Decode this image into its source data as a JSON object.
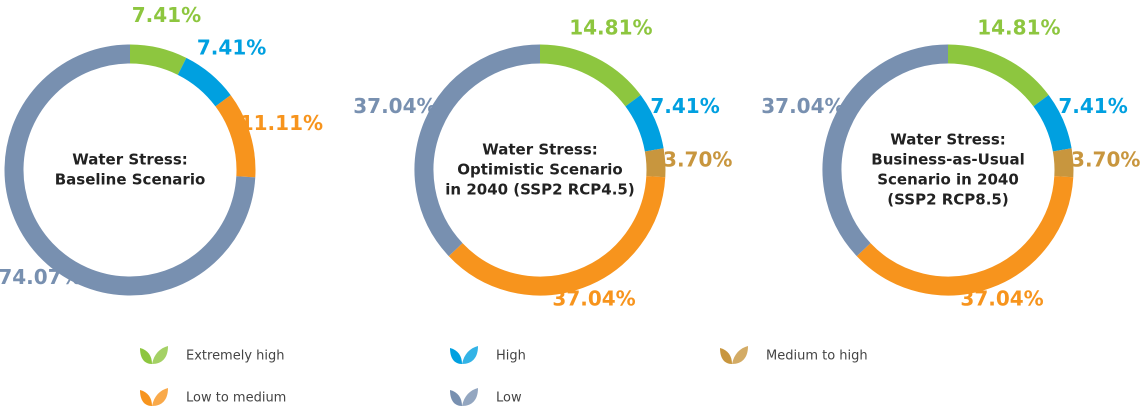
{
  "chart_data": [
    {
      "type": "pie",
      "donut": true,
      "title": [
        "Water Stress:",
        "Baseline Scenario"
      ],
      "values": [
        7.41,
        7.41,
        11.11,
        74.07
      ],
      "value_labels": [
        "7.41%",
        "7.41%",
        "11.11%",
        "74.07%"
      ],
      "colors": [
        "#8dc63f",
        "#00a0e0",
        "#f7941d",
        "#7890b0"
      ]
    },
    {
      "type": "pie",
      "donut": true,
      "title": [
        "Water Stress:",
        "Optimistic Scenario",
        "in 2040 (SSP2 RCP4.5)"
      ],
      "values": [
        14.81,
        7.41,
        3.7,
        37.04,
        37.04
      ],
      "value_labels": [
        "14.81%",
        "7.41%",
        "3.70%",
        "37.04%",
        "37.04%"
      ],
      "colors": [
        "#8dc63f",
        "#00a0e0",
        "#c8963e",
        "#f7941d",
        "#7890b0"
      ]
    },
    {
      "type": "pie",
      "donut": true,
      "title": [
        "Water Stress:",
        "Business-as-Usual",
        "Scenario in 2040",
        "(SSP2 RCP8.5)"
      ],
      "values": [
        14.81,
        7.41,
        3.7,
        37.04,
        37.04
      ],
      "value_labels": [
        "14.81%",
        "7.41%",
        "3.70%",
        "37.04%",
        "37.04%"
      ],
      "colors": [
        "#8dc63f",
        "#00a0e0",
        "#c8963e",
        "#f7941d",
        "#7890b0"
      ]
    }
  ],
  "legend": [
    {
      "name": "Extremely high",
      "color": "#8dc63f"
    },
    {
      "name": "High",
      "color": "#00a0e0"
    },
    {
      "name": "Medium to high",
      "color": "#c8963e"
    },
    {
      "name": "Low to medium",
      "color": "#f7941d"
    },
    {
      "name": "Low",
      "color": "#7890b0"
    }
  ]
}
